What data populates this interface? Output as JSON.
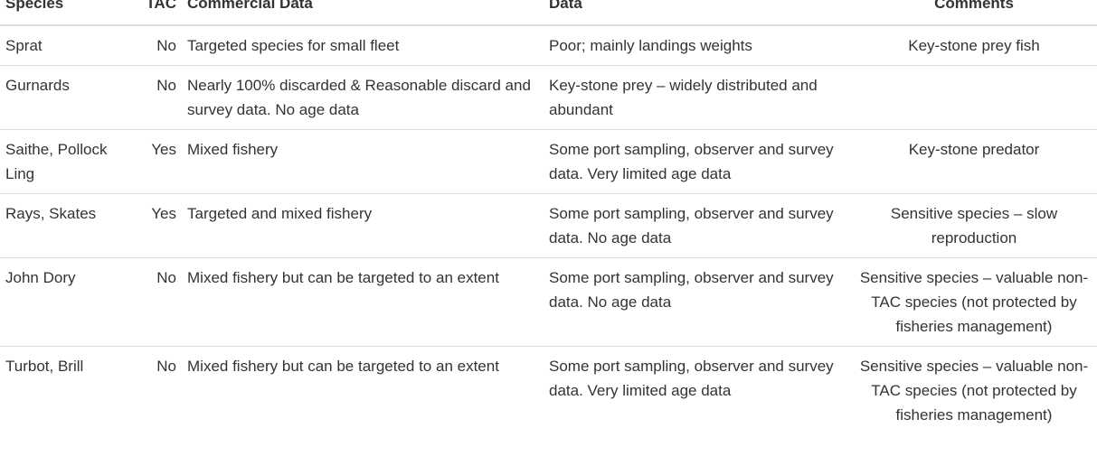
{
  "table": {
    "headers": {
      "species": "Species",
      "tac": "TAC",
      "commercial": "Commercial Data",
      "data": "Data",
      "comments": "Comments"
    },
    "rows": [
      {
        "species": "Sprat",
        "tac": "No",
        "commercial": "Targeted species for small fleet",
        "data": "Poor; mainly landings weights",
        "comments": "Key-stone prey fish"
      },
      {
        "species": "Gurnards",
        "tac": "No",
        "commercial": "Nearly 100% discarded & Reasonable discard and survey data. No age data",
        "data": "Key-stone prey – widely distributed and abundant",
        "comments": ""
      },
      {
        "species": "Saithe, Pollock Ling",
        "tac": "Yes",
        "commercial": "Mixed fishery",
        "data": "Some port sampling, observer and survey data. Very limited age data",
        "comments": "Key-stone predator"
      },
      {
        "species": "Rays, Skates",
        "tac": "Yes",
        "commercial": "Targeted and mixed fishery",
        "data": "Some port sampling, observer and survey data. No age data",
        "comments": "Sensitive species – slow reproduction"
      },
      {
        "species": "John Dory",
        "tac": "No",
        "commercial": "Mixed fishery but can be targeted to an extent",
        "data": "Some port sampling, observer and survey data. No age data",
        "comments": "Sensitive species – valuable non-TAC species (not protected by fisheries management)"
      },
      {
        "species": "Turbot, Brill",
        "tac": "No",
        "commercial": "Mixed fishery but can be targeted to an extent",
        "data": "Some port sampling, observer and survey data. Very limited age data",
        "comments": "Sensitive species – valuable non-TAC species (not protected by fisheries management)"
      }
    ]
  }
}
